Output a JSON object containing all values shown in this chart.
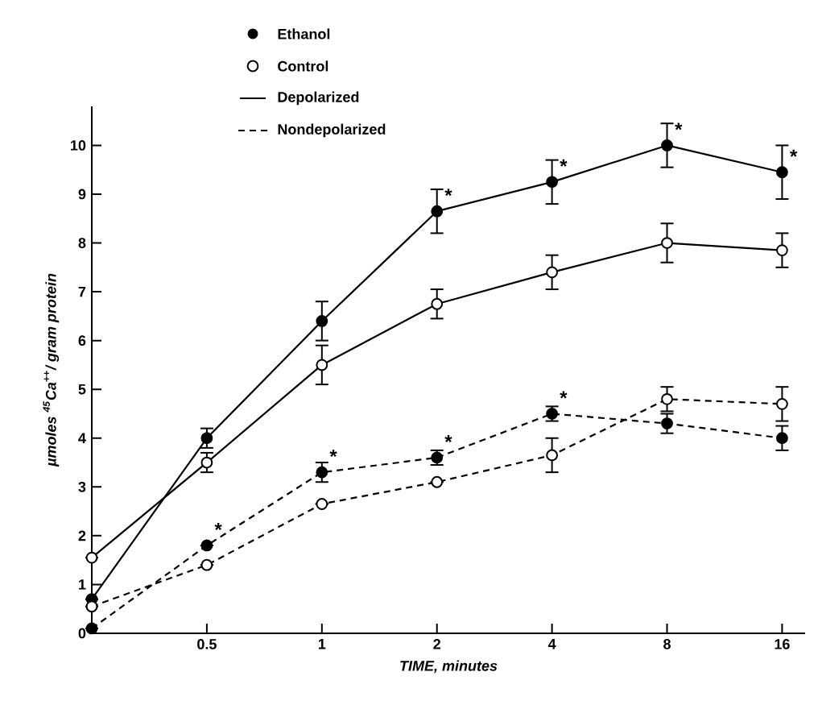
{
  "chart_data": {
    "type": "line",
    "xlabel": "TIME, minutes",
    "ylabel": "µmoles $^{45}$Ca$^{++}$/ gram protein",
    "categories": [
      null,
      "0.5",
      "1",
      "2",
      "4",
      "8",
      "16"
    ],
    "ylim": [
      0,
      10.8
    ],
    "yticks": [
      0,
      1,
      2,
      3,
      4,
      5,
      6,
      7,
      8,
      9,
      10
    ],
    "marker": "circle",
    "grid": false,
    "series": [
      {
        "color": "#000000",
        "line_style": "solid",
        "values": [
          0.7,
          4.0,
          6.4,
          8.65,
          9.25,
          10.0,
          9.45
        ],
        "errors": [
          null,
          0.2,
          0.4,
          0.45,
          0.45,
          0.45,
          0.55
        ]
      },
      {
        "color": "#000000",
        "line_style": "solid",
        "values": [
          1.55,
          3.5,
          5.5,
          6.75,
          7.4,
          8.0,
          7.85
        ],
        "errors": [
          null,
          0.2,
          0.4,
          0.3,
          0.35,
          0.4,
          0.35
        ]
      },
      {
        "color": "#000000",
        "line_style": "dashed",
        "values": [
          0.1,
          1.8,
          3.3,
          3.6,
          4.5,
          4.3,
          4.0
        ],
        "errors": [
          null,
          null,
          0.2,
          0.15,
          0.15,
          0.2,
          0.25
        ]
      },
      {
        "color": "#000000",
        "line_style": "dashed",
        "values": [
          0.55,
          1.4,
          2.65,
          3.1,
          3.65,
          4.8,
          4.7
        ],
        "errors": [
          null,
          null,
          null,
          null,
          0.35,
          0.25,
          0.35
        ]
      }
    ],
    "annotations": [
      "Ethanol",
      "Control",
      "Depolarized",
      "Nondepolarized",
      {
        "text": "*",
        "x": "2",
        "y": 8.65
      },
      {
        "text": "*",
        "x": "4",
        "y": 9.25
      },
      {
        "text": "*",
        "x": "8",
        "y": 10.0
      },
      {
        "text": "*",
        "x": "16",
        "y": 9.45
      },
      {
        "text": "*",
        "x": "0.5",
        "y": 1.8
      },
      {
        "text": "*",
        "x": "1",
        "y": 3.3
      },
      {
        "text": "*",
        "x": "2",
        "y": 3.6
      },
      {
        "text": "*",
        "x": "4",
        "y": 4.5
      }
    ]
  }
}
